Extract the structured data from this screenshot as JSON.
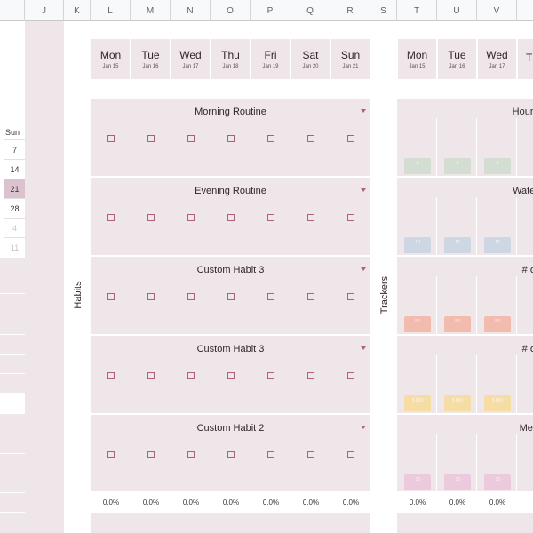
{
  "columns": [
    "I",
    "J",
    "K",
    "L",
    "M",
    "N",
    "O",
    "P",
    "Q",
    "R",
    "S",
    "T",
    "U",
    "V"
  ],
  "mini_calendar": {
    "weekday": "Sun",
    "dates": [
      {
        "label": "7",
        "state": "normal"
      },
      {
        "label": "14",
        "state": "normal"
      },
      {
        "label": "21",
        "state": "today"
      },
      {
        "label": "28",
        "state": "normal"
      },
      {
        "label": "4",
        "state": "muted"
      },
      {
        "label": "11",
        "state": "muted"
      }
    ]
  },
  "days": [
    {
      "name": "Mon",
      "date": "Jan 15"
    },
    {
      "name": "Tue",
      "date": "Jan 16"
    },
    {
      "name": "Wed",
      "date": "Jan 17"
    },
    {
      "name": "Thu",
      "date": "Jan 18"
    },
    {
      "name": "Fri",
      "date": "Jan 19"
    },
    {
      "name": "Sat",
      "date": "Jan 20"
    },
    {
      "name": "Sun",
      "date": "Jan 21"
    }
  ],
  "tracker_days": [
    {
      "name": "Mon",
      "date": "Jan 15"
    },
    {
      "name": "Tue",
      "date": "Jan 16"
    },
    {
      "name": "Wed",
      "date": "Jan 17"
    },
    {
      "name": "T",
      "date": ""
    }
  ],
  "sections": {
    "habits_label": "Habits",
    "trackers_label": "Trackers"
  },
  "habits": [
    {
      "title": "Morning Routine",
      "checked": [
        false,
        false,
        false,
        false,
        false,
        false,
        false
      ]
    },
    {
      "title": "Evening Routine",
      "checked": [
        false,
        false,
        false,
        false,
        false,
        false,
        false
      ]
    },
    {
      "title": "Custom Habit 3",
      "checked": [
        false,
        false,
        false,
        false,
        false,
        false,
        false
      ]
    },
    {
      "title": "Custom Habit 3",
      "checked": [
        false,
        false,
        false,
        false,
        false,
        false,
        false
      ]
    },
    {
      "title": "Custom Habit 2",
      "checked": [
        false,
        false,
        false,
        false,
        false,
        false,
        false
      ]
    }
  ],
  "habit_percentages": [
    "0.0%",
    "0.0%",
    "0.0%",
    "0.0%",
    "0.0%",
    "0.0%",
    "0.0%"
  ],
  "trackers": [
    {
      "title": "Hours",
      "color": "#d3ddd2",
      "values": [
        "8",
        "8",
        "8"
      ]
    },
    {
      "title": "Water",
      "color": "#cdd7e3",
      "values": [
        "10",
        "10",
        "10"
      ]
    },
    {
      "title": "# of",
      "color": "#f1bcae",
      "values": [
        "50",
        "50",
        "50"
      ]
    },
    {
      "title": "# of",
      "color": "#f6dca5",
      "values": [
        "5,000",
        "5,000",
        "5,000"
      ]
    },
    {
      "title": "Med",
      "color": "#ecc9dc",
      "values": [
        "30",
        "30",
        "30"
      ]
    }
  ],
  "tracker_percentages": [
    "0.0%",
    "0.0%",
    "0.0%"
  ]
}
